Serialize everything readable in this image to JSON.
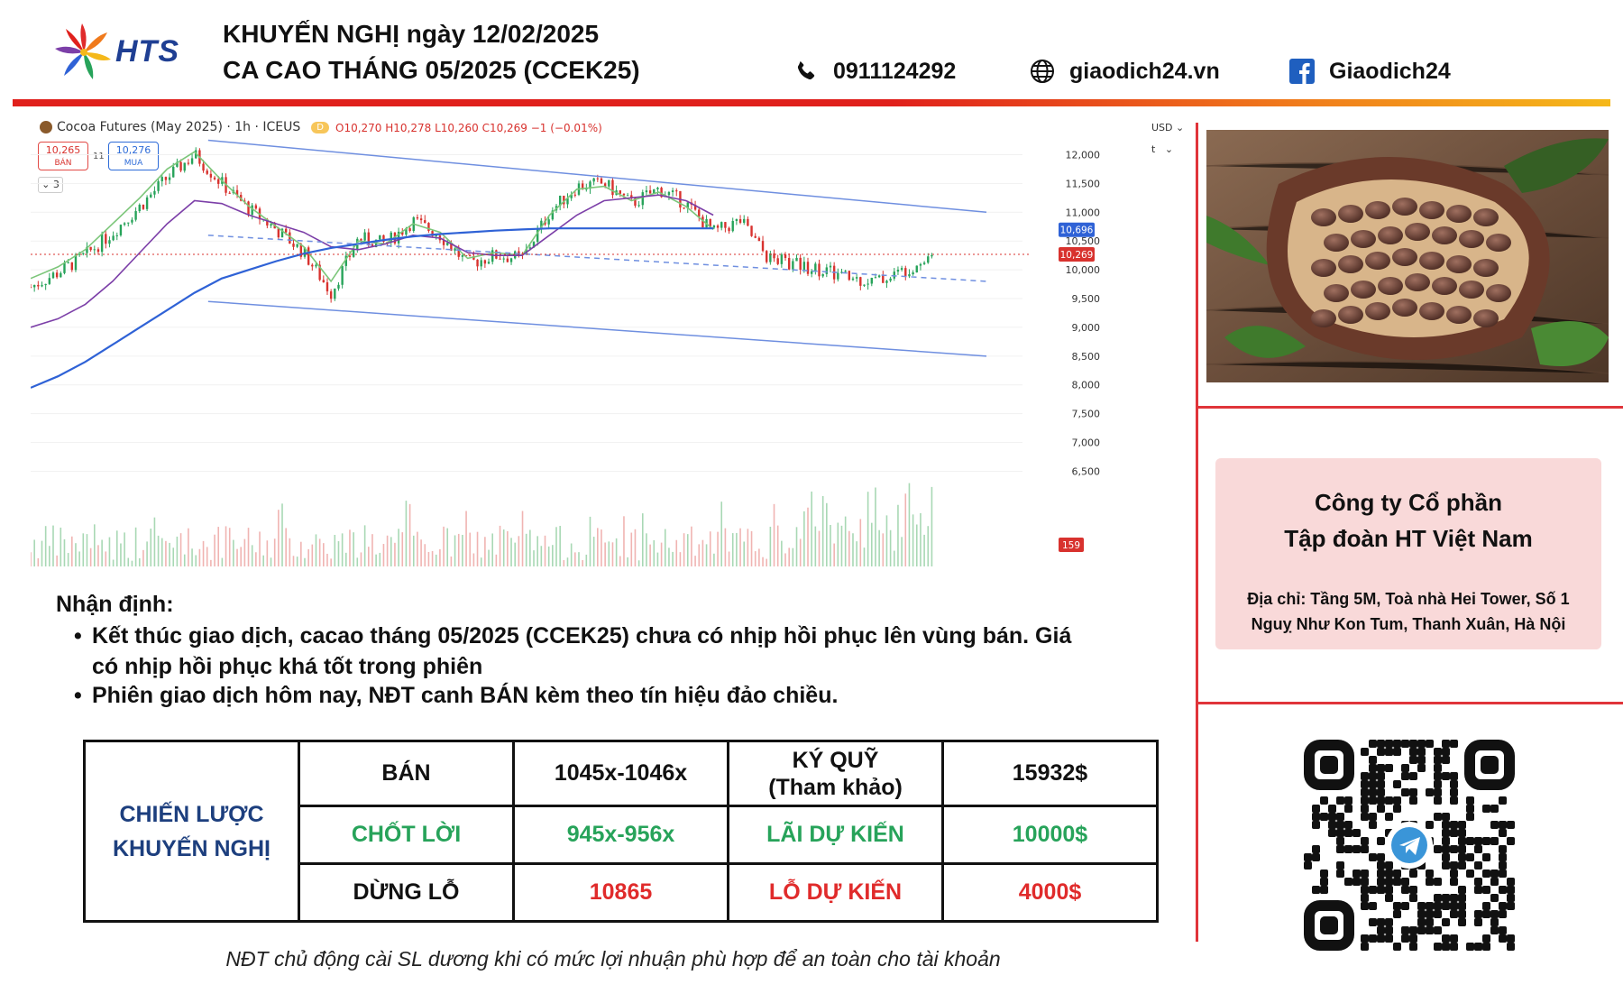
{
  "header": {
    "brand": "HTS",
    "title_line1": "KHUYẾN NGHỊ ngày 12/02/2025",
    "title_line2": "CA CAO THÁNG 05/2025 (CCEK25)",
    "phone": "0911124292",
    "website": "giaodich24.vn",
    "facebook": "Giaodich24",
    "icons": [
      "phone-icon",
      "globe-icon",
      "facebook-icon"
    ],
    "bar_colors": [
      "#e0201c",
      "#f07a1c",
      "#f5b81a"
    ]
  },
  "chart_panel": {
    "symbol": "Cocoa Futures (May 2025) · 1h · ICEUS",
    "badge": "D",
    "ohlc": "O10,270 H10,278 L10,260 C10,269 −1 (−0.01%)",
    "sell_price": "10,265",
    "sell_label": "BÁN",
    "buy_price": "10,276",
    "buy_label": "MUA",
    "spread": "11",
    "indicators": "3",
    "currency": "USD",
    "unit": "t"
  },
  "chart_data": {
    "type": "line",
    "title": "Cocoa Futures (May 2025) · 1h · ICEUS",
    "y_ticks": [
      12000,
      11500,
      11000,
      10500,
      10000,
      9500,
      9000,
      8500,
      8000,
      7500,
      7000,
      6500
    ],
    "y_tick_labels": [
      "12,000",
      "11,500",
      "11,000",
      "10,500",
      "10,000",
      "9,500",
      "9,000",
      "8,500",
      "8,000",
      "7,500",
      "7,000",
      "6,500"
    ],
    "ylim": [
      6100,
      12650
    ],
    "x": [
      0,
      4,
      8,
      12,
      16,
      20,
      24,
      28,
      32,
      36,
      40,
      44,
      48,
      52,
      56,
      60,
      64,
      68,
      72,
      76,
      80,
      84,
      88,
      92,
      96,
      100
    ],
    "xlim": [
      0,
      140
    ],
    "series": [
      {
        "values": [
          9700,
          9950,
          10250,
          10650,
          11100,
          11600,
          12000,
          11500,
          11050,
          10700,
          10300,
          9600,
          10550,
          10450,
          10850,
          10600,
          10100,
          10250,
          10200,
          11000,
          11450,
          11500,
          11150,
          11400,
          11150,
          10650
        ]
      },
      {
        "values": [
          9850,
          10050,
          10350,
          10800,
          11250,
          11750,
          12050,
          11550,
          11100,
          10750,
          10400,
          9800,
          10500,
          10450,
          10800,
          10650,
          10200,
          10300,
          10250,
          10950,
          11400,
          11450,
          11200,
          11350,
          11100,
          10700
        ]
      },
      {
        "values": [
          9000,
          9150,
          9400,
          9800,
          10300,
          10800,
          11200,
          11150,
          10950,
          10800,
          10650,
          10400,
          10350,
          10450,
          10600,
          10550,
          10300,
          10250,
          10250,
          10600,
          10950,
          11200,
          11250,
          11300,
          11200,
          10950
        ]
      },
      {
        "values": [
          7950,
          8150,
          8400,
          8700,
          9000,
          9300,
          9600,
          9850,
          10000,
          10150,
          10280,
          10380,
          10450,
          10520,
          10580,
          10620,
          10650,
          10680,
          10700,
          10720,
          10720,
          10720,
          10720,
          10720,
          10720,
          10720
        ]
      }
    ],
    "tail": [
      10850,
      10200,
      10100,
      10000,
      9850,
      9800,
      10000,
      10269
    ],
    "channel_upper": {
      "x": [
        26,
        140
      ],
      "y": [
        12250,
        11000
      ]
    },
    "channel_lower": {
      "x": [
        26,
        140
      ],
      "y": [
        9450,
        8500
      ]
    },
    "midline": {
      "x": [
        26,
        140
      ],
      "y": [
        10600,
        9800
      ]
    },
    "last_price": 10269,
    "last_price_label": "10,269",
    "ma_price_label": "10,696",
    "ma_price": 10696,
    "volume_label": "159",
    "colors": {
      "up": "#27a35a",
      "down": "#d8322e",
      "ma_fast": "#7cc67a",
      "ma_mid": "#7c3fa8",
      "ma_slow": "#2f62d6",
      "channel": "#6f8fe0"
    }
  },
  "sidebar": {
    "photo": "cocoa-pod-photo",
    "company_line1": "Công ty Cổ phần",
    "company_line2": "Tập đoàn HT Việt Nam",
    "address_line1": "Địa chỉ: Tầng 5M, Toà nhà Hei Tower, Số 1",
    "address_line2": "Nguỵ Như Kon Tum, Thanh Xuân, Hà Nội",
    "qr": "telegram-qr-code",
    "accent": "#e0343a"
  },
  "analysis": {
    "heading": "Nhận định:",
    "bullet1_line1": "Kết thúc giao dịch, cacao tháng 05/2025 (CCEK25) chưa có nhịp hồi phục lên vùng bán. Giá",
    "bullet1_line2": "có nhịp hồi phục khá tốt trong phiên",
    "bullet2": "Phiên giao dịch hôm nay, NĐT canh BÁN kèm theo tín hiệu đảo chiều."
  },
  "strategy": {
    "label_line1": "CHIẾN LƯỢC",
    "label_line2": "KHUYẾN NGHỊ",
    "row1": {
      "c1": "BÁN",
      "c2": "1045x-1046x",
      "c3a": "KÝ QUỸ",
      "c3b": "(Tham khảo)",
      "c4": "15932$"
    },
    "row2": {
      "c1": "CHỐT LỜI",
      "c2": "945x-956x",
      "c3": "LÃI DỰ KIẾN",
      "c4": "10000$"
    },
    "row3": {
      "c1": "DỪNG LỖ",
      "c2": "10865",
      "c3": "LỖ DỰ KIẾN",
      "c4": "4000$"
    },
    "colors": {
      "label": "#1d3f7e",
      "profit": "#27a35a",
      "loss": "#e02b2b"
    }
  },
  "note": "NĐT chủ động cài SL dương khi có mức lợi nhuận phù hợp để an toàn cho tài khoản"
}
